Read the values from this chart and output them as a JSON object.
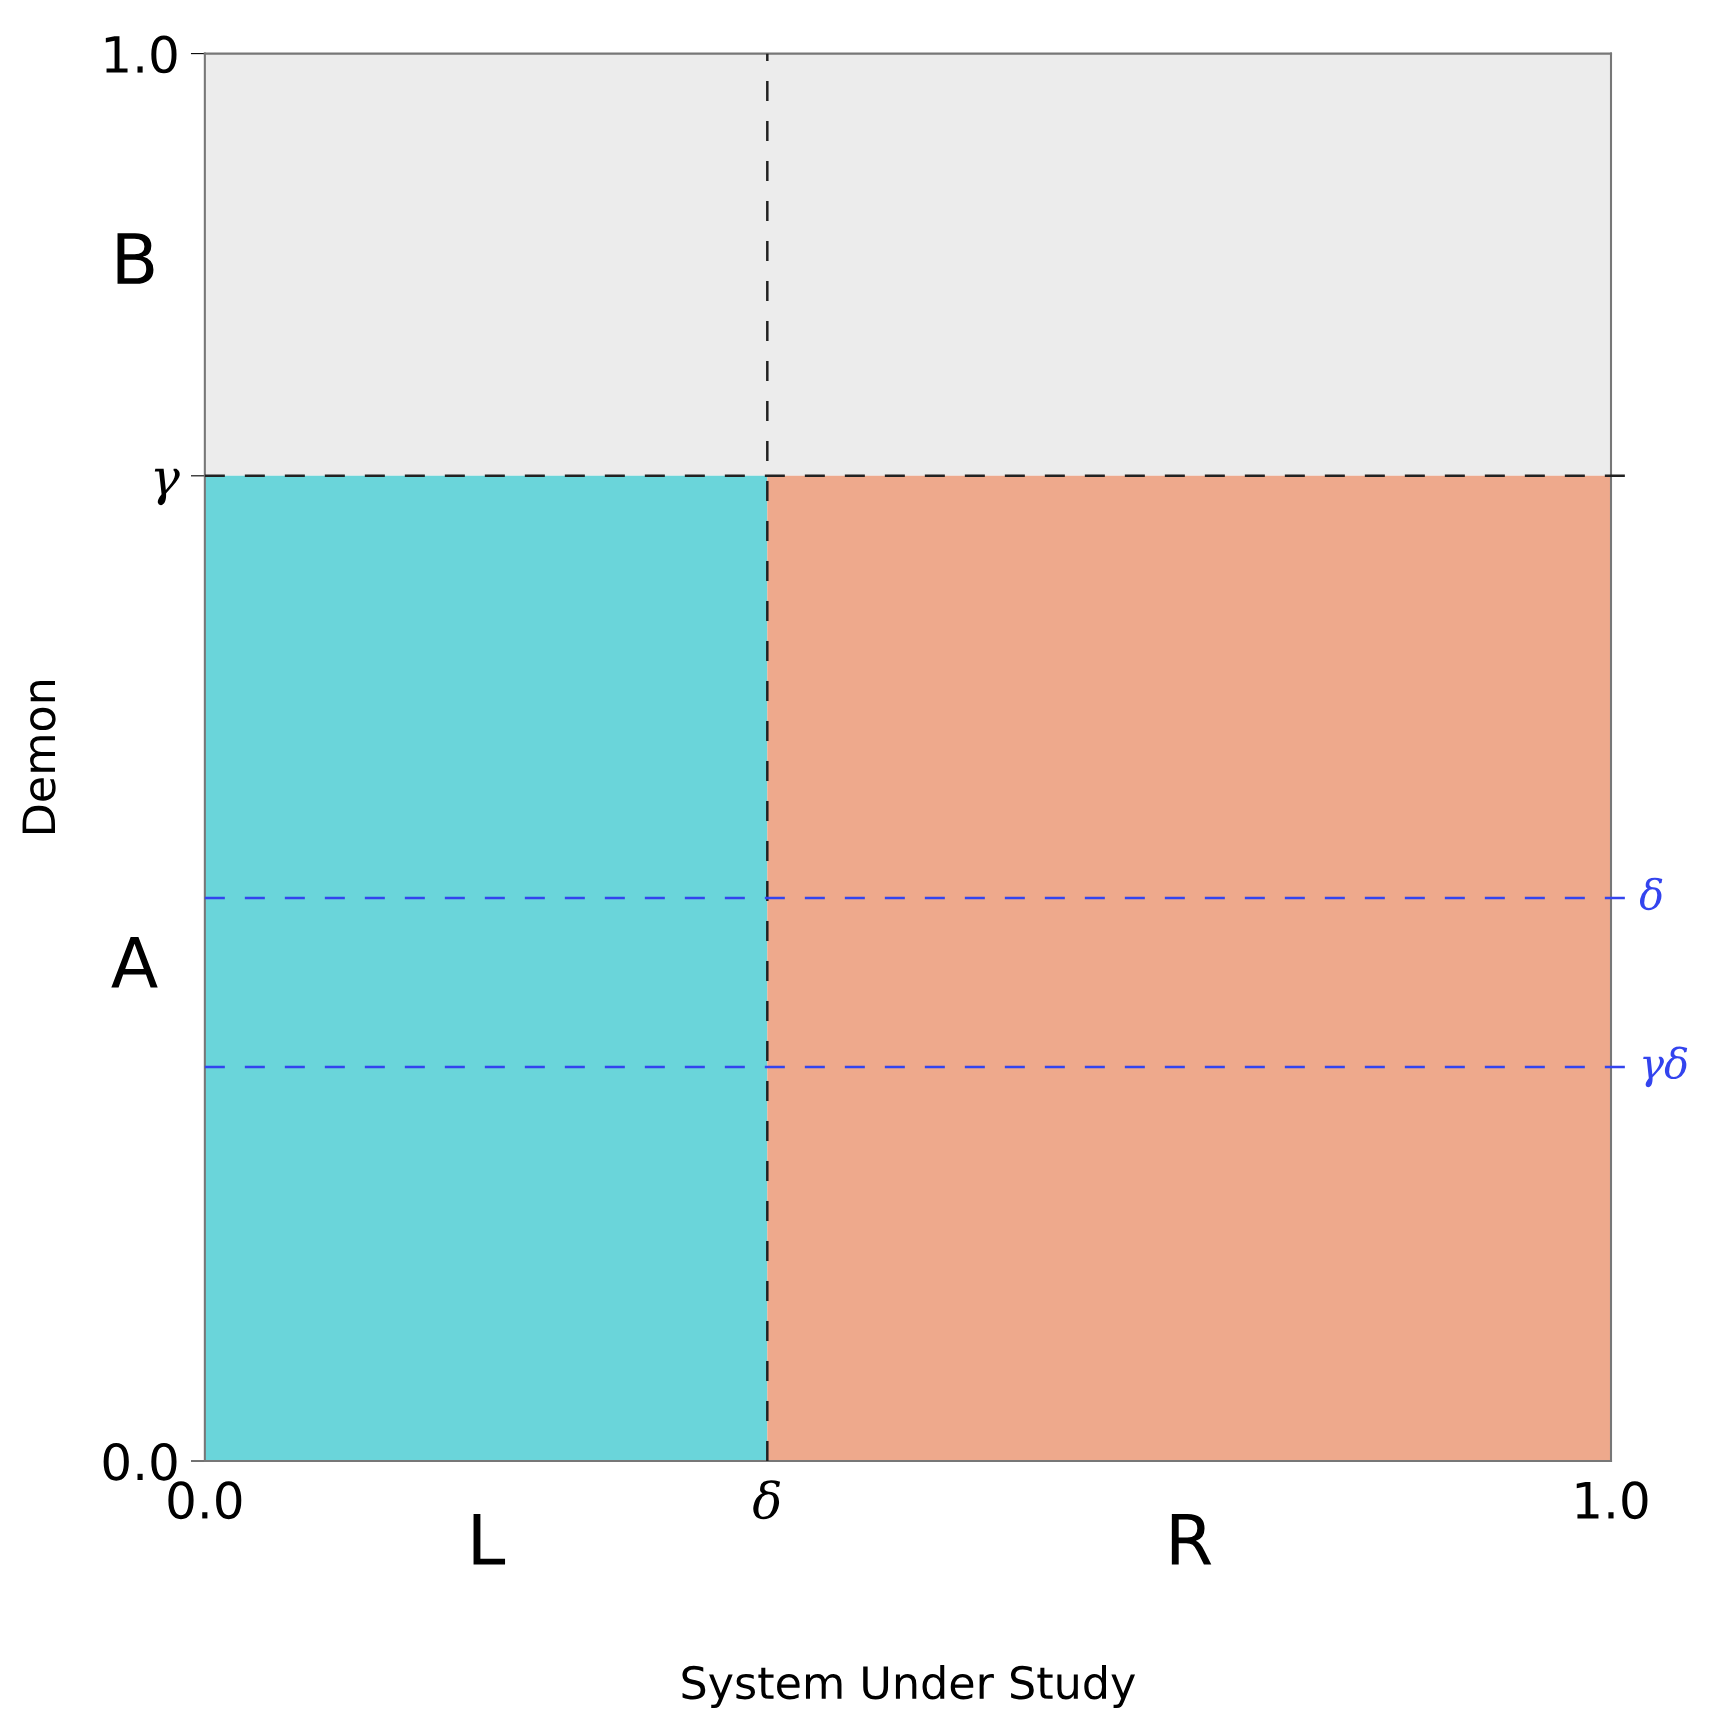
{
  "chart_data": {
    "type": "area",
    "xlabel": "System Under Study",
    "ylabel": "Demon",
    "xlim": [
      0,
      1
    ],
    "ylim": [
      0,
      1
    ],
    "xticks": [
      {
        "value": 0,
        "label": "0.0"
      },
      {
        "value": 0.4,
        "label": "δ"
      },
      {
        "value": 1,
        "label": "1.0"
      }
    ],
    "yticks": [
      {
        "value": 0,
        "label": "0.0"
      },
      {
        "value": 0.7,
        "label": "γ"
      },
      {
        "value": 1,
        "label": "1.0"
      }
    ],
    "series": [
      {
        "name": "L",
        "color": "#6ad5da",
        "x": [
          0,
          0.4
        ],
        "values": [
          0.7,
          0.7
        ]
      },
      {
        "name": "R",
        "color": "#eea98c",
        "x": [
          0.4,
          1
        ],
        "values": [
          0.7,
          0.7
        ]
      }
    ],
    "bands": [
      {
        "axis": "y",
        "from": 0.7,
        "to": 1,
        "color": "#ececec",
        "label": "B"
      }
    ],
    "annotations": [
      "A"
    ],
    "ref_lines": [
      {
        "axis": "x",
        "value": 0.4,
        "color": "#222222",
        "line_style": "dashed"
      },
      {
        "axis": "y",
        "value": 0.7,
        "color": "#222222",
        "line_style": "dashed"
      },
      {
        "axis": "y",
        "value": 0.4,
        "color": "#3344ee",
        "line_style": "dashed",
        "label": "δ"
      },
      {
        "axis": "y",
        "value": 0.28,
        "color": "#3344ee",
        "line_style": "dashed",
        "label": "γδ"
      }
    ]
  }
}
